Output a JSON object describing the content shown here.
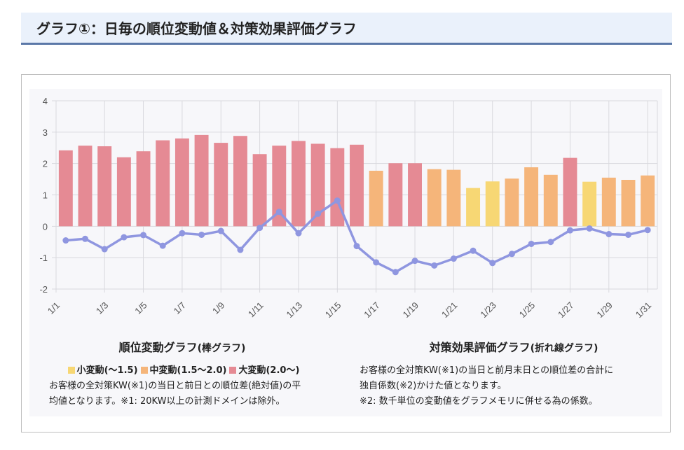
{
  "header": {
    "title": "グラフ①：日毎の順位変動値＆対策効果評価グラフ"
  },
  "colors": {
    "small": "#f7d774",
    "medium": "#f5b57a",
    "large": "#e58a94",
    "line": "#8f96e0",
    "grid": "#d9d9de",
    "header_bg": "#eaf1fb",
    "header_border": "#5b78a8"
  },
  "legend_left": {
    "title": "順位変動グラフ",
    "subtitle": "(棒グラフ)",
    "items": [
      {
        "label": "小変動(〜1.5)",
        "color_key": "small"
      },
      {
        "label": "中変動(1.5〜2.0)",
        "color_key": "medium"
      },
      {
        "label": "大変動(2.0〜)",
        "color_key": "large"
      }
    ],
    "desc1": "お客様の全対策KW(※1)の当日と前日との順位差(絶対値)の平",
    "desc2": "均値となります。※1: 20KW以上の計測ドメインは除外。"
  },
  "legend_right": {
    "title": "対策効果評価グラフ",
    "subtitle": "(折れ線グラフ)",
    "desc1": "お客様の全対策KW(※1)の当日と前月末日との順位差の合計に",
    "desc2": "独自係数(※2)かけた値となります。",
    "desc3": "※2: 数千単位の変動値をグラフメモリに併せる為の係数。"
  },
  "chart_data": {
    "type": "bar",
    "categories": [
      "1/1",
      "1/2",
      "1/3",
      "1/4",
      "1/5",
      "1/6",
      "1/7",
      "1/8",
      "1/9",
      "1/10",
      "1/11",
      "1/12",
      "1/13",
      "1/14",
      "1/15",
      "1/16",
      "1/17",
      "1/18",
      "1/19",
      "1/20",
      "1/21",
      "1/22",
      "1/23",
      "1/24",
      "1/25",
      "1/26",
      "1/27",
      "1/28",
      "1/29",
      "1/30",
      "1/31"
    ],
    "tick_labels": [
      "1/1",
      "1/3",
      "1/5",
      "1/7",
      "1/9",
      "1/11",
      "1/13",
      "1/15",
      "1/17",
      "1/19",
      "1/21",
      "1/23",
      "1/25",
      "1/27",
      "1/29",
      "1/31"
    ],
    "ylim": [
      -2,
      4
    ],
    "yticks": [
      "4",
      "3",
      "2",
      "1",
      "0",
      "-1",
      "-2"
    ],
    "series": [
      {
        "kind": "bar",
        "values": [
          2.42,
          2.57,
          2.55,
          2.2,
          2.39,
          2.74,
          2.8,
          2.91,
          2.66,
          2.88,
          2.3,
          2.57,
          2.72,
          2.63,
          2.49,
          2.6,
          1.77,
          2.01,
          2.01,
          1.82,
          1.8,
          1.22,
          1.43,
          1.52,
          1.88,
          1.64,
          2.18,
          1.42,
          1.55,
          1.48,
          1.62
        ],
        "color_keys": [
          "large",
          "large",
          "large",
          "large",
          "large",
          "large",
          "large",
          "large",
          "large",
          "large",
          "large",
          "large",
          "large",
          "large",
          "large",
          "large",
          "medium",
          "large",
          "large",
          "medium",
          "medium",
          "small",
          "small",
          "medium",
          "medium",
          "medium",
          "large",
          "small",
          "medium",
          "medium",
          "medium"
        ]
      },
      {
        "kind": "line",
        "values": [
          -0.45,
          -0.4,
          -0.73,
          -0.35,
          -0.28,
          -0.62,
          -0.22,
          -0.27,
          -0.15,
          -0.75,
          -0.05,
          0.46,
          -0.22,
          0.4,
          0.82,
          -0.63,
          -1.15,
          -1.46,
          -1.1,
          -1.25,
          -1.03,
          -0.78,
          -1.17,
          -0.88,
          -0.56,
          -0.5,
          -0.13,
          -0.07,
          -0.25,
          -0.27,
          -0.12
        ]
      }
    ],
    "grid": true
  }
}
